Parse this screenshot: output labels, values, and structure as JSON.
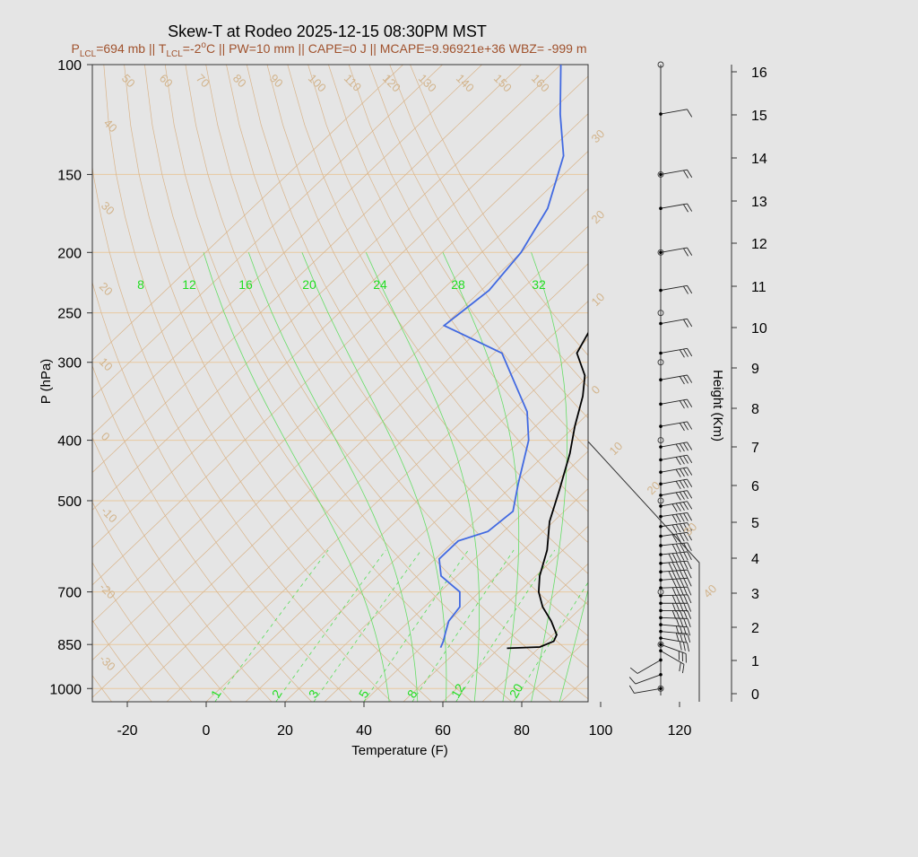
{
  "chart_data": {
    "type": "line",
    "title": "Skew-T at Rodeo 2025-12-15 08:30PM MST",
    "subtitle": {
      "p_lcl": "P",
      "p_lcl_sub": "LCL",
      "p_lcl_val": "=694 mb || T",
      "t_lcl_sub": "LCL",
      "t_lcl_val": "=-2",
      "t_lcl_sup": "o",
      "rest": "C || PW=10 mm || CAPE=0 J || MCAPE=9.96921e+36 WBZ= -999 m"
    },
    "xlabel": "Temperature (F)",
    "ylabel": "P (hPa)",
    "y2label": "Height (Km)",
    "xlim": [
      -28,
      125
    ],
    "ylim": [
      1050,
      100
    ],
    "x_ticks": [
      "-20",
      "0",
      "20",
      "40",
      "60",
      "80",
      "100",
      "120"
    ],
    "x_tick_values": [
      -20,
      0,
      20,
      40,
      60,
      80,
      100,
      120
    ],
    "y_ticks": [
      "100",
      "150",
      "200",
      "250",
      "300",
      "400",
      "500",
      "700",
      "850",
      "1000"
    ],
    "y_tick_values": [
      100,
      150,
      200,
      250,
      300,
      400,
      500,
      700,
      850,
      1000
    ],
    "height_ticks": [
      "0",
      "1",
      "2",
      "3",
      "4",
      "5",
      "6",
      "7",
      "8",
      "9",
      "10",
      "11",
      "12",
      "13",
      "14",
      "15",
      "16"
    ],
    "height_tick_pressures": [
      1000,
      898,
      802,
      717,
      630,
      553,
      479,
      410,
      352,
      304,
      260,
      224,
      192,
      165,
      141,
      121,
      103
    ],
    "isotherm_labels": [
      "-30",
      "-20",
      "-10",
      "0",
      "10",
      "20",
      "30",
      "40",
      "50",
      "60",
      "70",
      "80",
      "90",
      "100",
      "110",
      "120",
      "130",
      "140",
      "150",
      "160"
    ],
    "mixing_ratio_top_labels": [
      "8",
      "12",
      "16",
      "20",
      "24",
      "28",
      "32"
    ],
    "mixing_ratio_bottom_labels": [
      "1",
      "2",
      "3",
      "5",
      "8",
      "12",
      "20"
    ],
    "hodo_speed_labels": [
      "30",
      "20",
      "10",
      "0",
      "10",
      "20",
      "30",
      "40"
    ],
    "series": [
      {
        "name": "temperature",
        "color": "#000000",
        "points": [
          [
            862,
            62
          ],
          [
            858,
            70
          ],
          [
            840,
            72
          ],
          [
            820,
            71
          ],
          [
            780,
            66
          ],
          [
            740,
            60
          ],
          [
            700,
            55
          ],
          [
            660,
            51
          ],
          [
            600,
            46
          ],
          [
            540,
            39
          ],
          [
            480,
            33
          ],
          [
            420,
            26
          ],
          [
            380,
            20
          ],
          [
            340,
            14
          ],
          [
            315,
            9
          ],
          [
            290,
            1
          ],
          [
            250,
            -4
          ],
          [
            210,
            -9
          ],
          [
            175,
            -14
          ],
          [
            160,
            -19
          ],
          [
            145,
            -25
          ],
          [
            125,
            -33
          ],
          [
            110,
            -40
          ],
          [
            100,
            -44
          ]
        ]
      },
      {
        "name": "dewpoint",
        "color": "#4169e1",
        "points": [
          [
            860,
            45
          ],
          [
            840,
            44
          ],
          [
            810,
            42
          ],
          [
            780,
            40
          ],
          [
            740,
            39
          ],
          [
            700,
            35
          ],
          [
            660,
            26
          ],
          [
            620,
            21
          ],
          [
            580,
            21
          ],
          [
            560,
            26
          ],
          [
            520,
            27
          ],
          [
            470,
            21
          ],
          [
            400,
            12
          ],
          [
            360,
            4
          ],
          [
            320,
            -8
          ],
          [
            290,
            -18
          ],
          [
            262,
            -40
          ],
          [
            230,
            -38
          ],
          [
            200,
            -40
          ],
          [
            170,
            -45
          ],
          [
            140,
            -55
          ],
          [
            120,
            -67
          ],
          [
            100,
            -80
          ]
        ]
      }
    ],
    "wind_barbs": [
      [
        1000,
        10,
        260
      ],
      [
        950,
        12,
        250
      ],
      [
        900,
        15,
        240
      ],
      [
        870,
        25,
        120
      ],
      [
        850,
        30,
        110
      ],
      [
        830,
        35,
        100
      ],
      [
        810,
        40,
        95
      ],
      [
        790,
        45,
        95
      ],
      [
        770,
        45,
        92
      ],
      [
        750,
        50,
        90
      ],
      [
        730,
        50,
        90
      ],
      [
        710,
        55,
        88
      ],
      [
        690,
        55,
        88
      ],
      [
        670,
        55,
        86
      ],
      [
        650,
        60,
        86
      ],
      [
        630,
        60,
        85
      ],
      [
        610,
        60,
        84
      ],
      [
        590,
        55,
        84
      ],
      [
        570,
        55,
        82
      ],
      [
        550,
        55,
        82
      ],
      [
        530,
        50,
        82
      ],
      [
        510,
        50,
        80
      ],
      [
        490,
        45,
        80
      ],
      [
        470,
        45,
        80
      ],
      [
        450,
        40,
        80
      ],
      [
        430,
        40,
        80
      ],
      [
        410,
        40,
        80
      ],
      [
        380,
        35,
        80
      ],
      [
        350,
        35,
        80
      ],
      [
        320,
        30,
        80
      ],
      [
        290,
        30,
        80
      ],
      [
        260,
        25,
        80
      ],
      [
        230,
        25,
        80
      ],
      [
        200,
        20,
        80
      ],
      [
        170,
        20,
        80
      ],
      [
        150,
        20,
        80
      ],
      [
        120,
        15,
        80
      ]
    ],
    "grid": true,
    "legend": "none"
  }
}
